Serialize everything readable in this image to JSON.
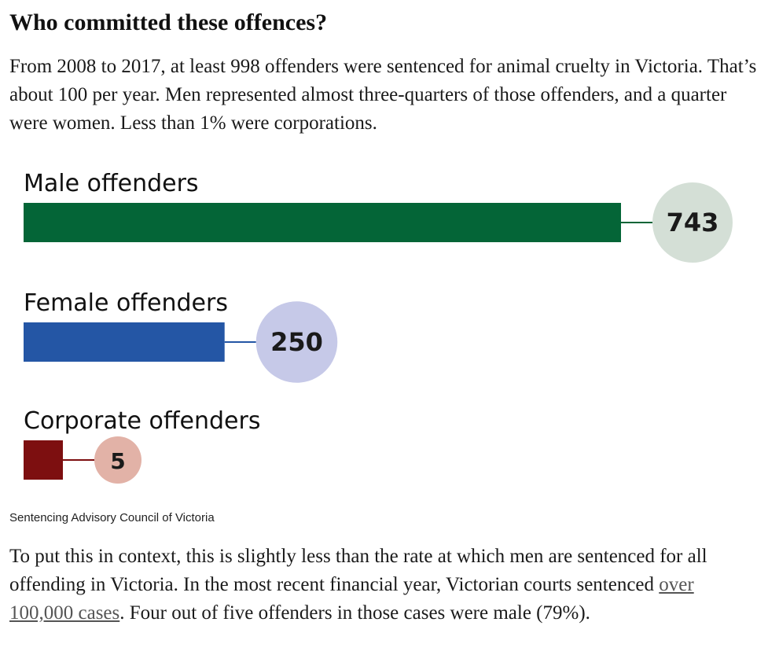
{
  "article": {
    "heading": "Who committed these offences?",
    "intro": "From 2008 to 2017, at least 998 offenders were sentenced for animal cruelty in Victoria. That’s about 100 per year. Men represented almost three-quarters of those offenders, and a quarter were women. Less than 1% were corporations.",
    "source": "Sentencing Advisory Council of Victoria",
    "context_before": "To put this in context, this is slightly less than the rate at which men are sentenced for all offending in Victoria. In the most recent financial year, Victorian courts sentenced ",
    "context_link": "over 100,000 cases",
    "context_after": ". Four out of five offenders in those cases were male (79%)."
  },
  "chart_data": {
    "type": "bar",
    "orientation": "horizontal",
    "categories": [
      "Male offenders",
      "Female offenders",
      "Corporate offenders"
    ],
    "values": [
      743,
      250,
      5
    ],
    "value_labels": [
      "743",
      "250",
      "5"
    ],
    "bar_colors": [
      "#046537",
      "#2456a5",
      "#7d0f10"
    ],
    "bubble_colors": [
      "#d4dfd6",
      "#c6c9e8",
      "#e2b2a7"
    ],
    "grid": false,
    "legend": "none"
  }
}
